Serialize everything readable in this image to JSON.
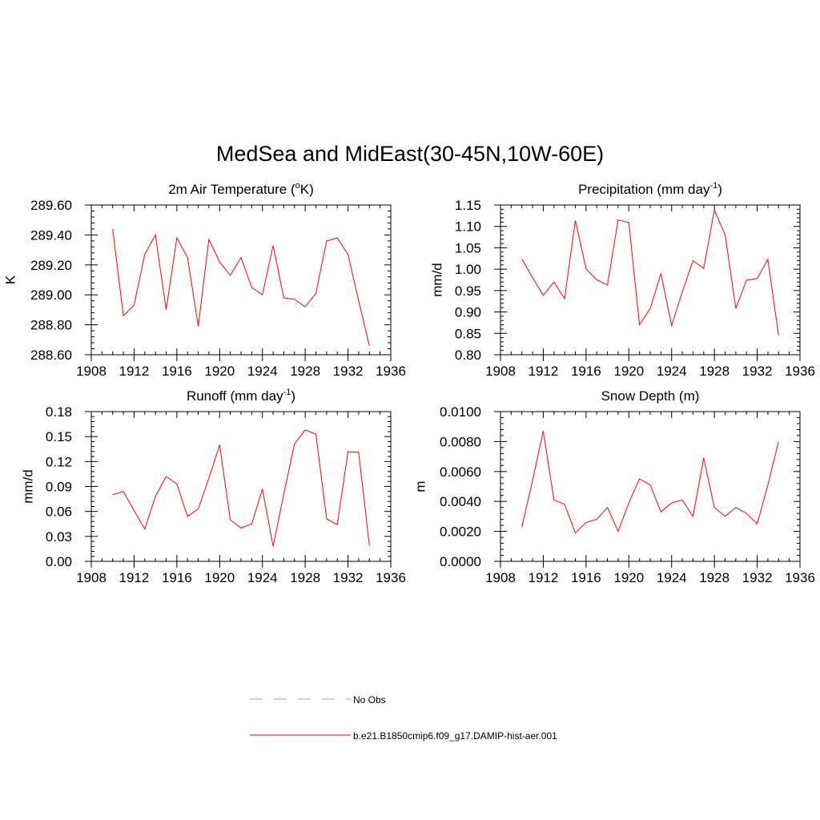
{
  "title": "MedSea and MidEast(30-45N,10W-60E)",
  "x_ticks": [
    1908,
    1912,
    1916,
    1920,
    1924,
    1928,
    1932,
    1936
  ],
  "x_tick_labels": [
    "1908",
    "1912",
    "1916",
    "1920",
    "1924",
    "1928",
    "1932",
    "1936"
  ],
  "panels": [
    {
      "title_main": "2m Air Temperature (",
      "title_sup_pre": "o",
      "title_after": "K)",
      "title_sup_post": "",
      "title_tail": "",
      "ylabel": "K",
      "y_tick_labels": [
        "288.60",
        "288.80",
        "289.00",
        "289.20",
        "289.40",
        "289.60"
      ]
    },
    {
      "title_main": "Precipitation (mm day",
      "title_sup_pre": "",
      "title_after": "",
      "title_sup_post": "-1",
      "title_tail": ")",
      "ylabel": "mm/d",
      "y_tick_labels": [
        "0.80",
        "0.85",
        "0.90",
        "0.95",
        "1.00",
        "1.05",
        "1.10",
        "1.15"
      ]
    },
    {
      "title_main": "Runoff (mm day",
      "title_sup_pre": "",
      "title_after": "",
      "title_sup_post": "-1",
      "title_tail": ")",
      "ylabel": "mm/d",
      "y_tick_labels": [
        "0.00",
        "0.03",
        "0.06",
        "0.09",
        "0.12",
        "0.15",
        "0.18"
      ]
    },
    {
      "title_main": "Snow Depth (m)",
      "title_sup_pre": "",
      "title_after": "",
      "title_sup_post": "",
      "title_tail": "",
      "ylabel": "m",
      "y_tick_labels": [
        "0.0000",
        "0.0020",
        "0.0040",
        "0.0060",
        "0.0080",
        "0.0100"
      ]
    }
  ],
  "legend": {
    "items": [
      {
        "label": "No Obs",
        "color": "#9999ff",
        "style": "dashed"
      },
      {
        "label": "b.e21.B1850cmip6.f09_g17.DAMIP-hist-aer.001",
        "color": "#ff0000",
        "style": "solid"
      }
    ]
  },
  "chart_data": [
    {
      "type": "line",
      "title": "2m Air Temperature (oK)",
      "ylabel": "K",
      "xlim": [
        1908,
        1936
      ],
      "ylim": [
        288.6,
        289.6
      ],
      "yticks": [
        288.6,
        288.8,
        289.0,
        289.2,
        289.4,
        289.6
      ],
      "series": [
        {
          "name": "b.e21.B1850cmip6.f09_g17.DAMIP-hist-aer.001",
          "color": "#ff0000",
          "x": [
            1910,
            1911,
            1912,
            1913,
            1914,
            1915,
            1916,
            1917,
            1918,
            1919,
            1920,
            1921,
            1922,
            1923,
            1924,
            1925,
            1926,
            1927,
            1928,
            1929,
            1930,
            1931,
            1932,
            1933,
            1934
          ],
          "y": [
            289.44,
            288.86,
            288.93,
            289.27,
            289.4,
            288.9,
            289.38,
            289.25,
            288.79,
            289.37,
            289.22,
            289.13,
            289.25,
            289.05,
            289.0,
            289.33,
            288.98,
            288.97,
            288.92,
            289.01,
            289.36,
            289.38,
            289.27,
            288.96,
            288.66
          ]
        }
      ]
    },
    {
      "type": "line",
      "title": "Precipitation (mm day-1)",
      "ylabel": "mm/d",
      "xlim": [
        1908,
        1936
      ],
      "ylim": [
        0.8,
        1.15
      ],
      "yticks": [
        0.8,
        0.85,
        0.9,
        0.95,
        1.0,
        1.05,
        1.1,
        1.15
      ],
      "series": [
        {
          "name": "b.e21.B1850cmip6.f09_g17.DAMIP-hist-aer.001",
          "color": "#ff0000",
          "x": [
            1910,
            1911,
            1912,
            1913,
            1914,
            1915,
            1916,
            1917,
            1918,
            1919,
            1920,
            1921,
            1922,
            1923,
            1924,
            1925,
            1926,
            1927,
            1928,
            1929,
            1930,
            1931,
            1932,
            1933,
            1934
          ],
          "y": [
            1.024,
            0.98,
            0.939,
            0.97,
            0.931,
            1.114,
            1.001,
            0.975,
            0.963,
            1.115,
            1.109,
            0.87,
            0.908,
            0.99,
            0.868,
            0.947,
            1.02,
            1.002,
            1.138,
            1.081,
            0.908,
            0.974,
            0.978,
            1.023,
            0.845
          ]
        }
      ]
    },
    {
      "type": "line",
      "title": "Runoff (mm day-1)",
      "ylabel": "mm/d",
      "xlim": [
        1908,
        1936
      ],
      "ylim": [
        0.0,
        0.18
      ],
      "yticks": [
        0.0,
        0.03,
        0.06,
        0.09,
        0.12,
        0.15,
        0.18
      ],
      "series": [
        {
          "name": "b.e21.B1850cmip6.f09_g17.DAMIP-hist-aer.001",
          "color": "#ff0000",
          "x": [
            1910,
            1911,
            1912,
            1913,
            1914,
            1915,
            1916,
            1917,
            1918,
            1919,
            1920,
            1921,
            1922,
            1923,
            1924,
            1925,
            1926,
            1927,
            1928,
            1929,
            1930,
            1931,
            1932,
            1933,
            1934
          ],
          "y": [
            0.08,
            0.084,
            0.061,
            0.039,
            0.078,
            0.102,
            0.093,
            0.054,
            0.063,
            0.1,
            0.14,
            0.05,
            0.04,
            0.045,
            0.087,
            0.018,
            0.081,
            0.141,
            0.158,
            0.153,
            0.051,
            0.044,
            0.132,
            0.131,
            0.019
          ]
        }
      ]
    },
    {
      "type": "line",
      "title": "Snow Depth (m)",
      "ylabel": "m",
      "xlim": [
        1908,
        1936
      ],
      "ylim": [
        0.0,
        0.01
      ],
      "yticks": [
        0.0,
        0.002,
        0.004,
        0.006,
        0.008,
        0.01
      ],
      "series": [
        {
          "name": "b.e21.B1850cmip6.f09_g17.DAMIP-hist-aer.001",
          "color": "#ff0000",
          "x": [
            1910,
            1911,
            1912,
            1913,
            1914,
            1915,
            1916,
            1917,
            1918,
            1919,
            1920,
            1921,
            1922,
            1923,
            1924,
            1925,
            1926,
            1927,
            1928,
            1929,
            1930,
            1931,
            1932,
            1933,
            1934
          ],
          "y": [
            0.0023,
            0.0054,
            0.0087,
            0.0041,
            0.0038,
            0.0019,
            0.0026,
            0.0028,
            0.0036,
            0.002,
            0.0039,
            0.0055,
            0.0051,
            0.0033,
            0.0039,
            0.0041,
            0.003,
            0.0069,
            0.0036,
            0.003,
            0.0036,
            0.0032,
            0.0025,
            0.0051,
            0.008
          ]
        }
      ]
    }
  ]
}
